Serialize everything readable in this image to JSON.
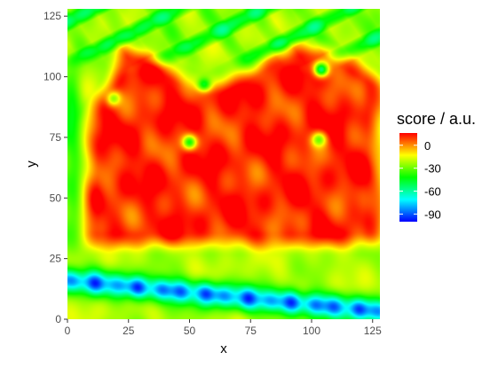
{
  "chart_data": {
    "type": "heatmap",
    "title": "",
    "xlabel": "x",
    "ylabel": "y",
    "xlim": [
      0,
      128
    ],
    "ylim": [
      0,
      128
    ],
    "x_ticks": [
      "0",
      "25",
      "50",
      "75",
      "100",
      "125"
    ],
    "y_ticks": [
      "0",
      "25",
      "50",
      "75",
      "100",
      "125"
    ],
    "x_tick_values": [
      0,
      25,
      50,
      75,
      100,
      125
    ],
    "y_tick_values": [
      0,
      25,
      50,
      75,
      100,
      125
    ],
    "grid": false,
    "legend": {
      "title": "score / a.u.",
      "placement": "right",
      "labels": [
        "0",
        "-30",
        "-60",
        "-90"
      ],
      "label_values": [
        0,
        -30,
        -60,
        -90
      ],
      "range": [
        -100,
        16
      ],
      "colors": [
        "#0000ff",
        "#00ffff",
        "#00ff00",
        "#ffff00",
        "#ff0000"
      ]
    },
    "regions": {
      "plateau_level": 12,
      "background_level": -22,
      "trench_level": -90,
      "holes": [
        {
          "x": 50,
          "y": 73,
          "value": -40
        },
        {
          "x": 19,
          "y": 91,
          "value": -25
        },
        {
          "x": 56,
          "y": 97,
          "value": -45
        },
        {
          "x": 104,
          "y": 103,
          "value": -55
        },
        {
          "x": 103,
          "y": 74,
          "value": -30
        }
      ]
    }
  }
}
